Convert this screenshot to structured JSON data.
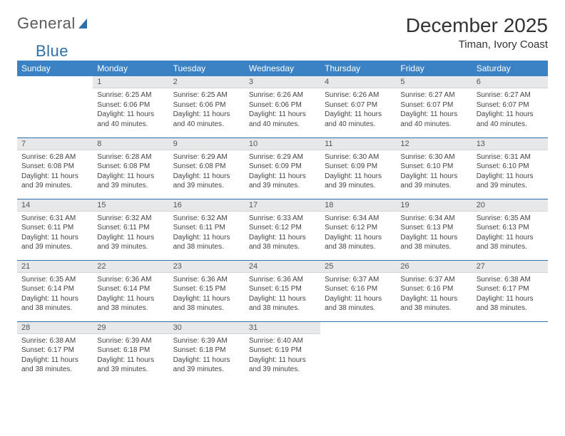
{
  "logo": {
    "text_a": "General",
    "text_b": "Blue"
  },
  "title": "December 2025",
  "location": "Timan, Ivory Coast",
  "colors": {
    "header_bg": "#3a82c4",
    "header_fg": "#ffffff",
    "daynum_bg": "#e7e8e9",
    "daynum_fg": "#555555",
    "border": "#2f6fa8",
    "body_fg": "#444444",
    "page_bg": "#ffffff",
    "logo_gray": "#5a5a5a",
    "logo_blue": "#2f6fa8"
  },
  "typography": {
    "title_fontsize": 28,
    "location_fontsize": 15,
    "dow_fontsize": 12,
    "daynum_fontsize": 11,
    "body_fontsize": 10
  },
  "days_of_week": [
    "Sunday",
    "Monday",
    "Tuesday",
    "Wednesday",
    "Thursday",
    "Friday",
    "Saturday"
  ],
  "weeks": [
    [
      {
        "n": "",
        "sr": "",
        "ss": "",
        "dl": ""
      },
      {
        "n": "1",
        "sr": "6:25 AM",
        "ss": "6:06 PM",
        "dl": "11 hours and 40 minutes."
      },
      {
        "n": "2",
        "sr": "6:25 AM",
        "ss": "6:06 PM",
        "dl": "11 hours and 40 minutes."
      },
      {
        "n": "3",
        "sr": "6:26 AM",
        "ss": "6:06 PM",
        "dl": "11 hours and 40 minutes."
      },
      {
        "n": "4",
        "sr": "6:26 AM",
        "ss": "6:07 PM",
        "dl": "11 hours and 40 minutes."
      },
      {
        "n": "5",
        "sr": "6:27 AM",
        "ss": "6:07 PM",
        "dl": "11 hours and 40 minutes."
      },
      {
        "n": "6",
        "sr": "6:27 AM",
        "ss": "6:07 PM",
        "dl": "11 hours and 40 minutes."
      }
    ],
    [
      {
        "n": "7",
        "sr": "6:28 AM",
        "ss": "6:08 PM",
        "dl": "11 hours and 39 minutes."
      },
      {
        "n": "8",
        "sr": "6:28 AM",
        "ss": "6:08 PM",
        "dl": "11 hours and 39 minutes."
      },
      {
        "n": "9",
        "sr": "6:29 AM",
        "ss": "6:08 PM",
        "dl": "11 hours and 39 minutes."
      },
      {
        "n": "10",
        "sr": "6:29 AM",
        "ss": "6:09 PM",
        "dl": "11 hours and 39 minutes."
      },
      {
        "n": "11",
        "sr": "6:30 AM",
        "ss": "6:09 PM",
        "dl": "11 hours and 39 minutes."
      },
      {
        "n": "12",
        "sr": "6:30 AM",
        "ss": "6:10 PM",
        "dl": "11 hours and 39 minutes."
      },
      {
        "n": "13",
        "sr": "6:31 AM",
        "ss": "6:10 PM",
        "dl": "11 hours and 39 minutes."
      }
    ],
    [
      {
        "n": "14",
        "sr": "6:31 AM",
        "ss": "6:11 PM",
        "dl": "11 hours and 39 minutes."
      },
      {
        "n": "15",
        "sr": "6:32 AM",
        "ss": "6:11 PM",
        "dl": "11 hours and 39 minutes."
      },
      {
        "n": "16",
        "sr": "6:32 AM",
        "ss": "6:11 PM",
        "dl": "11 hours and 38 minutes."
      },
      {
        "n": "17",
        "sr": "6:33 AM",
        "ss": "6:12 PM",
        "dl": "11 hours and 38 minutes."
      },
      {
        "n": "18",
        "sr": "6:34 AM",
        "ss": "6:12 PM",
        "dl": "11 hours and 38 minutes."
      },
      {
        "n": "19",
        "sr": "6:34 AM",
        "ss": "6:13 PM",
        "dl": "11 hours and 38 minutes."
      },
      {
        "n": "20",
        "sr": "6:35 AM",
        "ss": "6:13 PM",
        "dl": "11 hours and 38 minutes."
      }
    ],
    [
      {
        "n": "21",
        "sr": "6:35 AM",
        "ss": "6:14 PM",
        "dl": "11 hours and 38 minutes."
      },
      {
        "n": "22",
        "sr": "6:36 AM",
        "ss": "6:14 PM",
        "dl": "11 hours and 38 minutes."
      },
      {
        "n": "23",
        "sr": "6:36 AM",
        "ss": "6:15 PM",
        "dl": "11 hours and 38 minutes."
      },
      {
        "n": "24",
        "sr": "6:36 AM",
        "ss": "6:15 PM",
        "dl": "11 hours and 38 minutes."
      },
      {
        "n": "25",
        "sr": "6:37 AM",
        "ss": "6:16 PM",
        "dl": "11 hours and 38 minutes."
      },
      {
        "n": "26",
        "sr": "6:37 AM",
        "ss": "6:16 PM",
        "dl": "11 hours and 38 minutes."
      },
      {
        "n": "27",
        "sr": "6:38 AM",
        "ss": "6:17 PM",
        "dl": "11 hours and 38 minutes."
      }
    ],
    [
      {
        "n": "28",
        "sr": "6:38 AM",
        "ss": "6:17 PM",
        "dl": "11 hours and 38 minutes."
      },
      {
        "n": "29",
        "sr": "6:39 AM",
        "ss": "6:18 PM",
        "dl": "11 hours and 39 minutes."
      },
      {
        "n": "30",
        "sr": "6:39 AM",
        "ss": "6:18 PM",
        "dl": "11 hours and 39 minutes."
      },
      {
        "n": "31",
        "sr": "6:40 AM",
        "ss": "6:19 PM",
        "dl": "11 hours and 39 minutes."
      },
      {
        "n": "",
        "sr": "",
        "ss": "",
        "dl": ""
      },
      {
        "n": "",
        "sr": "",
        "ss": "",
        "dl": ""
      },
      {
        "n": "",
        "sr": "",
        "ss": "",
        "dl": ""
      }
    ]
  ],
  "labels": {
    "sunrise": "Sunrise:",
    "sunset": "Sunset:",
    "daylight": "Daylight:"
  }
}
